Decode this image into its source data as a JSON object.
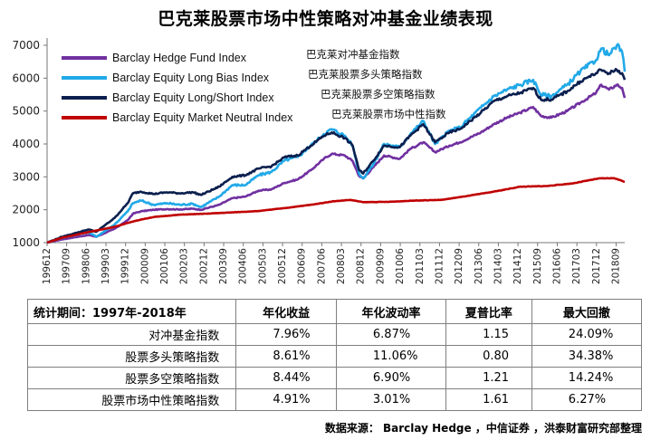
{
  "chart_data": {
    "type": "line",
    "title": "巴克莱股票市场中性策略对冲基金业绩表现",
    "xlabel": "",
    "ylabel": "",
    "ylim": [
      1000,
      7000
    ],
    "yticks": [
      1000,
      2000,
      3000,
      4000,
      5000,
      6000,
      7000
    ],
    "xticks": [
      "199612",
      "199709",
      "199806",
      "199903",
      "199912",
      "200009",
      "200106",
      "200203",
      "200212",
      "200309",
      "200406",
      "200503",
      "200512",
      "200609",
      "200706",
      "200803",
      "200812",
      "200909",
      "201006",
      "201103",
      "201112",
      "201209",
      "201306",
      "201403",
      "201412",
      "201509",
      "201606",
      "201703",
      "201712",
      "201809"
    ],
    "legend_position": "top-left",
    "grid": false,
    "series": [
      {
        "name": "Barclay Hedge Fund Index",
        "name_cn": "巴克莱对冲基金指数",
        "color": "#7030a0",
        "points": [
          [
            1996.92,
            1000
          ],
          [
            1997.5,
            1100
          ],
          [
            1998.5,
            1230
          ],
          [
            1998.8,
            1180
          ],
          [
            1999.5,
            1420
          ],
          [
            2000.0,
            1680
          ],
          [
            2000.2,
            1880
          ],
          [
            2000.5,
            1950
          ],
          [
            2001.0,
            2000
          ],
          [
            2001.5,
            2020
          ],
          [
            2002.0,
            2010
          ],
          [
            2002.5,
            2030
          ],
          [
            2002.8,
            2000
          ],
          [
            2003.5,
            2150
          ],
          [
            2004.0,
            2350
          ],
          [
            2004.5,
            2400
          ],
          [
            2005.0,
            2580
          ],
          [
            2005.5,
            2620
          ],
          [
            2006.0,
            2820
          ],
          [
            2006.5,
            2920
          ],
          [
            2007.0,
            3200
          ],
          [
            2007.5,
            3550
          ],
          [
            2007.8,
            3700
          ],
          [
            2008.3,
            3650
          ],
          [
            2008.6,
            3480
          ],
          [
            2008.85,
            3020
          ],
          [
            2009.0,
            2950
          ],
          [
            2009.4,
            3300
          ],
          [
            2009.8,
            3650
          ],
          [
            2010.4,
            3550
          ],
          [
            2010.8,
            3850
          ],
          [
            2011.3,
            4050
          ],
          [
            2011.75,
            3750
          ],
          [
            2012.3,
            3950
          ],
          [
            2012.7,
            4050
          ],
          [
            2013.5,
            4350
          ],
          [
            2014.0,
            4600
          ],
          [
            2014.5,
            4800
          ],
          [
            2015.0,
            4950
          ],
          [
            2015.5,
            5120
          ],
          [
            2015.8,
            4850
          ],
          [
            2016.2,
            4800
          ],
          [
            2016.8,
            5000
          ],
          [
            2017.3,
            5250
          ],
          [
            2017.9,
            5550
          ],
          [
            2018.1,
            5800
          ],
          [
            2018.4,
            5650
          ],
          [
            2018.7,
            5800
          ],
          [
            2018.9,
            5700
          ],
          [
            2019.0,
            5400
          ]
        ]
      },
      {
        "name": "Barclay Equity Long Bias Index",
        "name_cn": "巴克莱股票多头策略指数",
        "color": "#21a9e8",
        "points": [
          [
            1996.92,
            1000
          ],
          [
            1997.5,
            1150
          ],
          [
            1998.5,
            1320
          ],
          [
            1998.8,
            1180
          ],
          [
            1999.5,
            1550
          ],
          [
            2000.0,
            1950
          ],
          [
            2000.2,
            2200
          ],
          [
            2000.5,
            2280
          ],
          [
            2001.0,
            2150
          ],
          [
            2001.5,
            2200
          ],
          [
            2002.0,
            2150
          ],
          [
            2002.5,
            2180
          ],
          [
            2002.8,
            2080
          ],
          [
            2003.5,
            2400
          ],
          [
            2004.0,
            2750
          ],
          [
            2004.5,
            2750
          ],
          [
            2005.0,
            3050
          ],
          [
            2005.5,
            3150
          ],
          [
            2006.0,
            3500
          ],
          [
            2006.5,
            3600
          ],
          [
            2007.0,
            3950
          ],
          [
            2007.5,
            4300
          ],
          [
            2007.8,
            4450
          ],
          [
            2008.3,
            4250
          ],
          [
            2008.6,
            3950
          ],
          [
            2008.85,
            3100
          ],
          [
            2009.0,
            2950
          ],
          [
            2009.4,
            3400
          ],
          [
            2009.8,
            4000
          ],
          [
            2010.4,
            3900
          ],
          [
            2010.8,
            4300
          ],
          [
            2011.3,
            4700
          ],
          [
            2011.75,
            4000
          ],
          [
            2012.3,
            4400
          ],
          [
            2012.7,
            4500
          ],
          [
            2013.5,
            5100
          ],
          [
            2014.0,
            5450
          ],
          [
            2014.5,
            5650
          ],
          [
            2015.0,
            5800
          ],
          [
            2015.5,
            5950
          ],
          [
            2015.8,
            5500
          ],
          [
            2016.2,
            5450
          ],
          [
            2016.8,
            5800
          ],
          [
            2017.3,
            6200
          ],
          [
            2017.9,
            6550
          ],
          [
            2018.1,
            6900
          ],
          [
            2018.4,
            6700
          ],
          [
            2018.7,
            7000
          ],
          [
            2018.9,
            6800
          ],
          [
            2019.0,
            6200
          ]
        ]
      },
      {
        "name": "Barclay Equity Long/Short Index",
        "name_cn": "巴克莱股票多空策略指数",
        "color": "#0b1f4e",
        "points": [
          [
            1996.92,
            1000
          ],
          [
            1997.5,
            1180
          ],
          [
            1998.5,
            1400
          ],
          [
            1998.8,
            1330
          ],
          [
            1999.5,
            1750
          ],
          [
            2000.0,
            2200
          ],
          [
            2000.2,
            2500
          ],
          [
            2000.5,
            2550
          ],
          [
            2001.0,
            2480
          ],
          [
            2001.5,
            2530
          ],
          [
            2002.0,
            2500
          ],
          [
            2002.5,
            2530
          ],
          [
            2002.8,
            2450
          ],
          [
            2003.5,
            2700
          ],
          [
            2004.0,
            3000
          ],
          [
            2004.5,
            3050
          ],
          [
            2005.0,
            3250
          ],
          [
            2005.5,
            3320
          ],
          [
            2006.0,
            3600
          ],
          [
            2006.5,
            3650
          ],
          [
            2007.0,
            3950
          ],
          [
            2007.5,
            4250
          ],
          [
            2007.8,
            4350
          ],
          [
            2008.3,
            4180
          ],
          [
            2008.6,
            3950
          ],
          [
            2008.85,
            3200
          ],
          [
            2009.0,
            3100
          ],
          [
            2009.4,
            3500
          ],
          [
            2009.8,
            3950
          ],
          [
            2010.4,
            3900
          ],
          [
            2010.8,
            4250
          ],
          [
            2011.3,
            4600
          ],
          [
            2011.75,
            4050
          ],
          [
            2012.3,
            4350
          ],
          [
            2012.7,
            4450
          ],
          [
            2013.5,
            4950
          ],
          [
            2014.0,
            5300
          ],
          [
            2014.5,
            5450
          ],
          [
            2015.0,
            5550
          ],
          [
            2015.5,
            5700
          ],
          [
            2015.8,
            5350
          ],
          [
            2016.2,
            5350
          ],
          [
            2016.8,
            5600
          ],
          [
            2017.3,
            5900
          ],
          [
            2017.9,
            6150
          ],
          [
            2018.1,
            6250
          ],
          [
            2018.4,
            6150
          ],
          [
            2018.7,
            6250
          ],
          [
            2018.9,
            6150
          ],
          [
            2019.0,
            5950
          ]
        ]
      },
      {
        "name": "Barclay Equity Market Neutral Index",
        "name_cn": "巴克莱股票市场中性指数",
        "color": "#c00000",
        "points": [
          [
            1996.92,
            1000
          ],
          [
            1997.5,
            1150
          ],
          [
            1998.5,
            1320
          ],
          [
            1999.5,
            1480
          ],
          [
            2000.0,
            1600
          ],
          [
            2000.5,
            1700
          ],
          [
            2001.0,
            1780
          ],
          [
            2002.0,
            1850
          ],
          [
            2003.0,
            1880
          ],
          [
            2004.0,
            1920
          ],
          [
            2005.0,
            1960
          ],
          [
            2006.0,
            2050
          ],
          [
            2007.0,
            2150
          ],
          [
            2007.8,
            2250
          ],
          [
            2008.5,
            2300
          ],
          [
            2009.0,
            2230
          ],
          [
            2010.0,
            2240
          ],
          [
            2011.0,
            2280
          ],
          [
            2012.0,
            2300
          ],
          [
            2013.0,
            2420
          ],
          [
            2014.0,
            2550
          ],
          [
            2015.0,
            2700
          ],
          [
            2016.0,
            2720
          ],
          [
            2017.0,
            2800
          ],
          [
            2018.0,
            2950
          ],
          [
            2018.6,
            2960
          ],
          [
            2019.0,
            2850
          ]
        ]
      }
    ]
  },
  "table": {
    "headers": [
      "统计期间：1997年-2018年",
      "年化收益",
      "年化波动率",
      "夏普比率",
      "最大回撤"
    ],
    "rows": [
      [
        "对冲基金指数",
        "7.96%",
        "6.87%",
        "1.15",
        "24.09%"
      ],
      [
        "股票多头策略指数",
        "8.61%",
        "11.06%",
        "0.80",
        "34.38%"
      ],
      [
        "股票多空策略指数",
        "8.44%",
        "6.90%",
        "1.21",
        "14.24%"
      ],
      [
        "股票市场中性策略指数",
        "4.91%",
        "3.01%",
        "1.61",
        "6.27%"
      ]
    ]
  },
  "source_note": "数据来源： Barclay Hedge ，中信证券 ，洪泰财富研究部整理"
}
